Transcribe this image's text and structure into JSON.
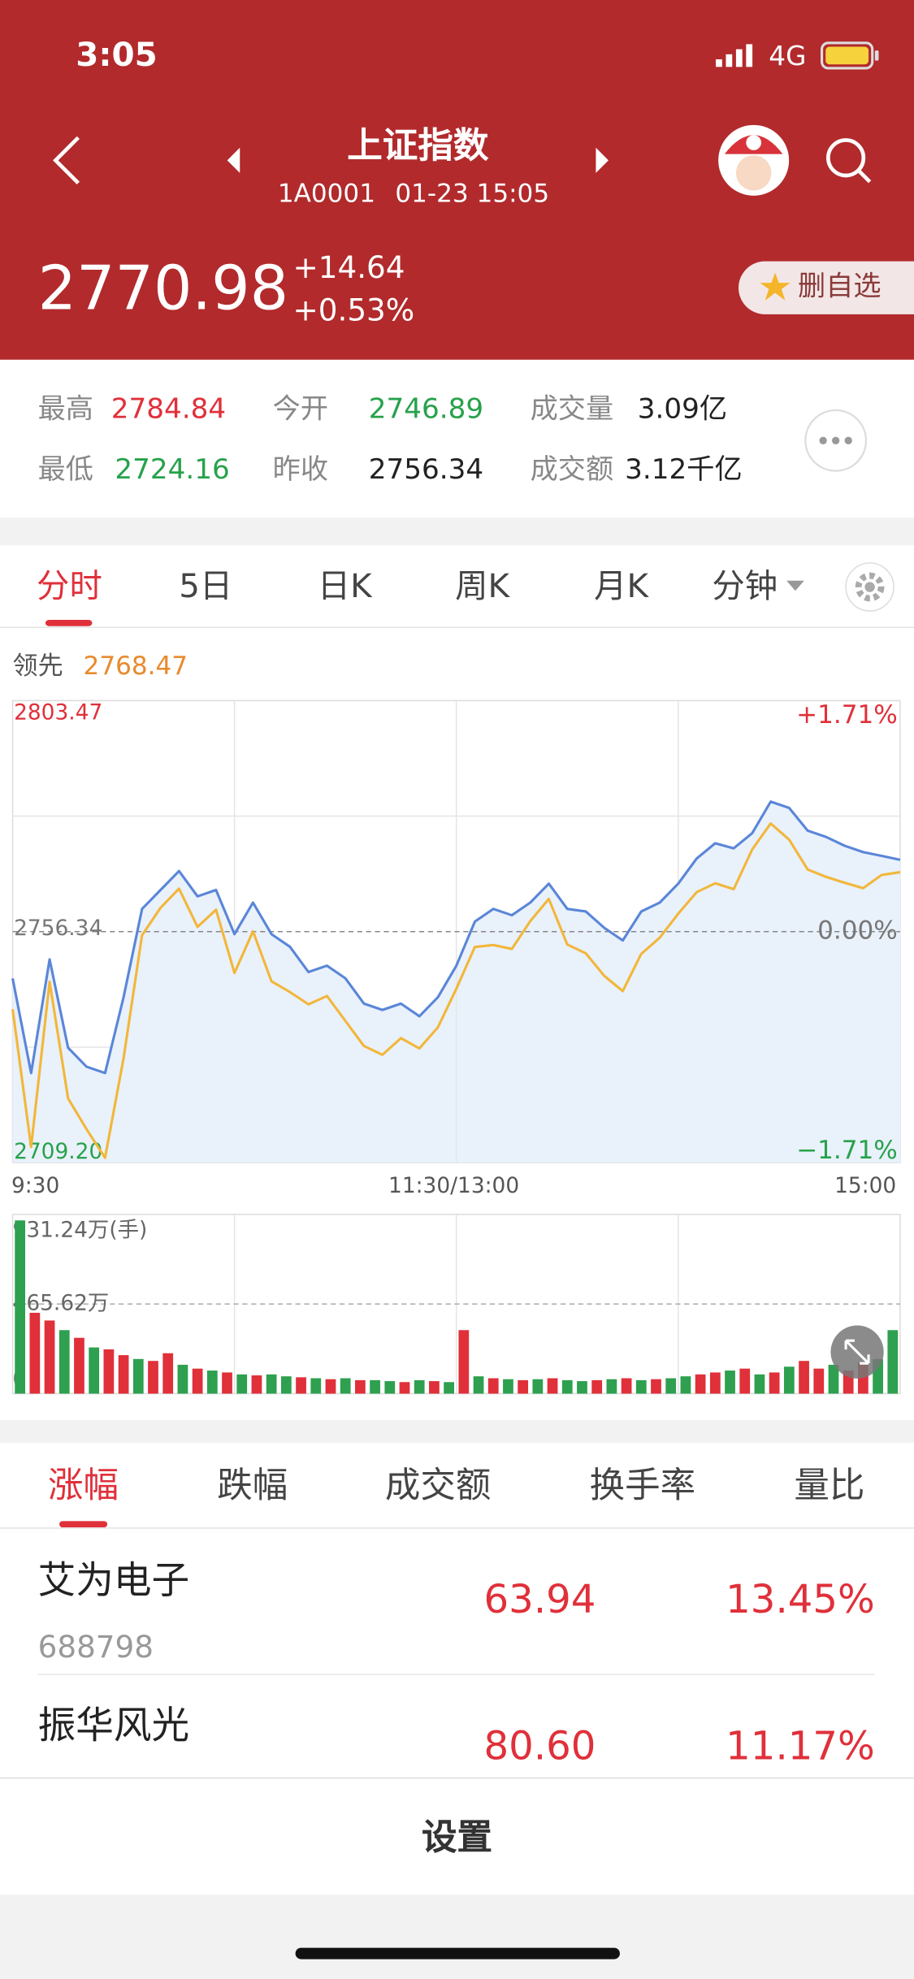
{
  "status": {
    "time": "3:05",
    "network": "4G"
  },
  "header": {
    "title": "上证指数",
    "code": "1A0001",
    "datetime": "01-23 15:05",
    "price": "2770.98",
    "change": "+14.64",
    "change_pct": "+0.53%",
    "watch_button": "删自选"
  },
  "stats": [
    [
      [
        "最高",
        "2784.84"
      ],
      [
        "今开",
        "2746.89"
      ],
      [
        "成交量",
        "3.09亿"
      ]
    ],
    [
      [
        "最低",
        "2724.16"
      ],
      [
        "昨收",
        "2756.34"
      ],
      [
        "成交额",
        "3.12千亿"
      ]
    ]
  ],
  "tabs": [
    "分时",
    "5日",
    "日K",
    "周K",
    "月K",
    "分钟"
  ],
  "chart_data": [
    {
      "type": "line",
      "xlim": [
        0,
        48
      ],
      "xticks": [
        {
          "value": 0,
          "label": "9:30"
        },
        {
          "value": 24,
          "label": "11:30/13:00"
        },
        {
          "value": 48,
          "label": "15:00"
        }
      ],
      "ylim": [
        2709.2,
        2803.47
      ],
      "yticks": [
        2803.47,
        2756.34,
        {
          "value": 2709.2,
          "label": "2709.20"
        }
      ],
      "y2lim": [
        -1.71,
        1.71
      ],
      "y2ticks": [
        {
          "value": 1.71,
          "label": "+1.71%"
        },
        {
          "value": 0,
          "label": "0.00%"
        },
        {
          "value": -1.71,
          "label": "−1.71%"
        }
      ],
      "area_color": "#e9f1fb",
      "series": [
        {
          "color": "#5a86d8",
          "values": [
            2746.8,
            2727.48,
            2750.66,
            2732.63,
            2728.77,
            2727.48,
            2742.94,
            2760.97,
            2764.83,
            2768.7,
            2763.54,
            2764.83,
            2755.82,
            2762.26,
            2755.82,
            2753.24,
            2748.09,
            2749.38,
            2746.8,
            2741.65,
            2740.36,
            2741.65,
            2739.07,
            2742.94,
            2749.38,
            2758.39,
            2760.97,
            2759.68,
            2762.26,
            2766.12,
            2760.97,
            2760.45,
            2757.1,
            2754.53,
            2760.45,
            2762.26,
            2766.12,
            2771.27,
            2774.36,
            2773.33,
            2776.42,
            2782.86,
            2781.57,
            2776.94,
            2775.65,
            2773.85,
            2772.56,
            2771.79,
            2770.98
          ]
        },
        {
          "name": "领先",
          "color": "#f2b73a",
          "values": [
            2740.5,
            2712.4,
            2746.1,
            2722.3,
            2716.0,
            2710.2,
            2730.5,
            2755.6,
            2761.2,
            2765.1,
            2757.3,
            2760.8,
            2747.9,
            2756.4,
            2746.2,
            2744.0,
            2741.5,
            2743.2,
            2738.1,
            2733.0,
            2731.2,
            2734.6,
            2732.5,
            2736.8,
            2744.7,
            2753.2,
            2753.6,
            2752.8,
            2758.5,
            2763.0,
            2753.7,
            2751.9,
            2747.3,
            2744.2,
            2751.8,
            2755.1,
            2760.0,
            2764.4,
            2766.2,
            2765.0,
            2773.1,
            2778.4,
            2775.1,
            2769.0,
            2767.5,
            2766.3,
            2765.2,
            2767.9,
            2768.47
          ]
        }
      ]
    },
    {
      "type": "bar",
      "ylim": [
        0,
        931.24
      ],
      "yticks": [
        {
          "value": 931.24,
          "label": "931.24万(手)"
        },
        {
          "value": 465.62,
          "label": "465.62万"
        },
        0
      ],
      "up_color": "#e0303a",
      "down_color": "#2ea04f",
      "values": [
        900,
        420,
        380,
        330,
        290,
        240,
        230,
        200,
        180,
        170,
        210,
        150,
        130,
        120,
        110,
        100,
        95,
        100,
        90,
        85,
        80,
        75,
        80,
        70,
        70,
        65,
        60,
        70,
        65,
        60,
        330,
        90,
        80,
        75,
        70,
        75,
        80,
        70,
        65,
        70,
        75,
        80,
        70,
        75,
        80,
        90,
        100,
        110,
        120,
        130,
        100,
        110,
        140,
        170,
        130,
        150,
        120,
        160,
        180,
        330
      ],
      "up": [
        false,
        true,
        true,
        false,
        true,
        false,
        true,
        true,
        false,
        true,
        true,
        false,
        true,
        false,
        true,
        false,
        true,
        false,
        false,
        true,
        false,
        true,
        false,
        true,
        false,
        false,
        true,
        false,
        true,
        false,
        true,
        false,
        true,
        false,
        true,
        false,
        true,
        false,
        false,
        true,
        false,
        true,
        false,
        true,
        false,
        false,
        true,
        true,
        false,
        true,
        false,
        true,
        false,
        true,
        true,
        false,
        true,
        true,
        false,
        false
      ]
    }
  ],
  "rank_tabs": [
    "涨幅",
    "跌幅",
    "成交额",
    "换手率",
    "量比"
  ],
  "stocks": [
    {
      "name": "艾为电子",
      "code": "688798",
      "price": "63.94",
      "change": "13.45%"
    },
    {
      "name": "振华风光",
      "price": "80.60",
      "change": "11.17%"
    }
  ],
  "footer": {
    "settings": "设置"
  }
}
